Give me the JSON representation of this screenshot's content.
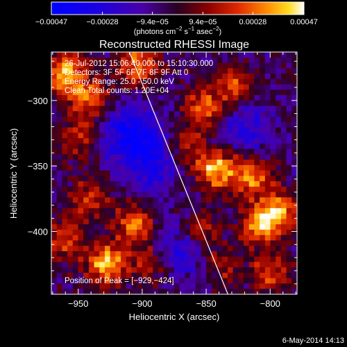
{
  "chart_data": {
    "type": "heatmap",
    "title": "Reconstructed RHESSI Image",
    "xlabel": "Heliocentric X (arcsec)",
    "ylabel": "Heliocentric Y (arcsec)",
    "xlim": [
      -971,
      -779
    ],
    "ylim": [
      -448,
      -263
    ],
    "x_ticks": [
      {
        "value": -950,
        "label": "−950"
      },
      {
        "value": -900,
        "label": "−900"
      },
      {
        "value": -850,
        "label": "−850"
      },
      {
        "value": -800,
        "label": "−800"
      }
    ],
    "y_ticks": [
      {
        "value": -300,
        "label": "−300"
      },
      {
        "value": -350,
        "label": "−350"
      },
      {
        "value": -400,
        "label": "−400"
      }
    ],
    "colorbar": {
      "range": [
        -0.00047,
        0.00047
      ],
      "tick_values": [
        -0.00047,
        -0.00028,
        -9.4e-05,
        9.4e-05,
        0.00028,
        0.00047
      ],
      "tick_labels": [
        "−0.00047",
        "−0.00028",
        "−9.4e−05",
        "9.4e−05",
        "0.00028",
        "0.00047"
      ],
      "unit_main": "(photons cm",
      "unit_sup1": "−2",
      "unit_mid": " s",
      "unit_sup2": "−1",
      "unit_end": " asec",
      "unit_sup3": "−2",
      "unit_close": ")"
    },
    "annotations": [
      "26-Jul-2012 15:06:40.000 to 15:10:30.000",
      "Detectors: 3F 5F 6F 7F 8F 9F  Att 0",
      "Energy Range: 25.0 - 50.0 keV",
      "Clean    Total counts: 1.20E+04"
    ],
    "peak_label": "Position of Peak = [−929,−424]",
    "peak_position": [
      -929,
      -424
    ],
    "limb_line": [
      [
        -910,
        -263
      ],
      [
        -833,
        -448
      ]
    ],
    "grid": false,
    "hotspots": [
      {
        "x": -960,
        "y": -280,
        "amp": 1.0
      },
      {
        "x": -940,
        "y": -300,
        "amp": 0.75
      },
      {
        "x": -903,
        "y": -273,
        "amp": 0.8
      },
      {
        "x": -950,
        "y": -330,
        "amp": 0.5
      },
      {
        "x": -928,
        "y": -425,
        "amp": 1.0
      },
      {
        "x": -960,
        "y": -405,
        "amp": 0.65
      },
      {
        "x": -942,
        "y": -375,
        "amp": 0.55
      },
      {
        "x": -905,
        "y": -395,
        "amp": 0.8
      },
      {
        "x": -892,
        "y": -425,
        "amp": 0.5
      },
      {
        "x": -843,
        "y": -352,
        "amp": 1.0
      },
      {
        "x": -815,
        "y": -358,
        "amp": 0.85
      },
      {
        "x": -852,
        "y": -305,
        "amp": 0.75
      },
      {
        "x": -826,
        "y": -290,
        "amp": 0.7
      },
      {
        "x": -868,
        "y": -335,
        "amp": 0.55
      },
      {
        "x": -793,
        "y": -385,
        "amp": 0.85
      },
      {
        "x": -808,
        "y": -395,
        "amp": 0.8
      },
      {
        "x": -800,
        "y": -432,
        "amp": 0.6
      },
      {
        "x": -855,
        "y": -400,
        "amp": 0.55
      },
      {
        "x": -838,
        "y": -425,
        "amp": 0.45
      }
    ],
    "coldspots": [
      {
        "x": -910,
        "y": -325,
        "amp": 0.7
      },
      {
        "x": -890,
        "y": -345,
        "amp": 0.6
      },
      {
        "x": -870,
        "y": -415,
        "amp": 0.55
      },
      {
        "x": -820,
        "y": -320,
        "amp": 0.5
      }
    ]
  },
  "footer": {
    "timestamp": "6-May-2014 14:13"
  }
}
